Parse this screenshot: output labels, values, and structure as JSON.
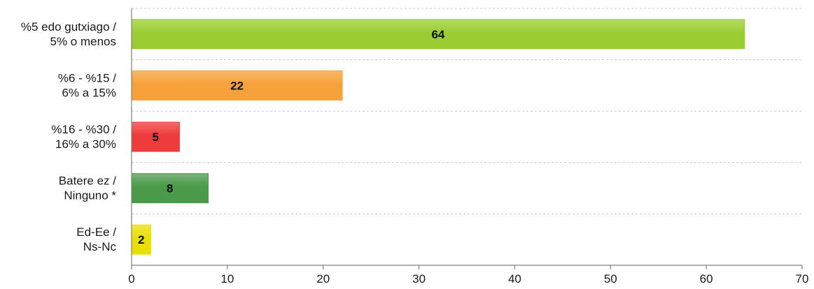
{
  "chart_data": {
    "type": "bar",
    "orientation": "horizontal",
    "categories": [
      [
        "%5 edo gutxiago /",
        "5% o menos"
      ],
      [
        "%6 - %15 /",
        "6% a 15%"
      ],
      [
        "%16 - %30 /",
        "16% a 30%"
      ],
      [
        "Batere ez /",
        "Ninguno *"
      ],
      [
        "Ed-Ee /",
        "Ns-Nc"
      ]
    ],
    "values": [
      64,
      22,
      5,
      8,
      2
    ],
    "colors": [
      "#9acd32",
      "#f7a13a",
      "#ee3b3b",
      "#4a9a4a",
      "#e8e000"
    ],
    "xlim": [
      0,
      70
    ],
    "xticks": [
      0,
      10,
      20,
      30,
      40,
      50,
      60,
      70
    ],
    "grid": "horizontal-dashed",
    "legend": "none"
  }
}
